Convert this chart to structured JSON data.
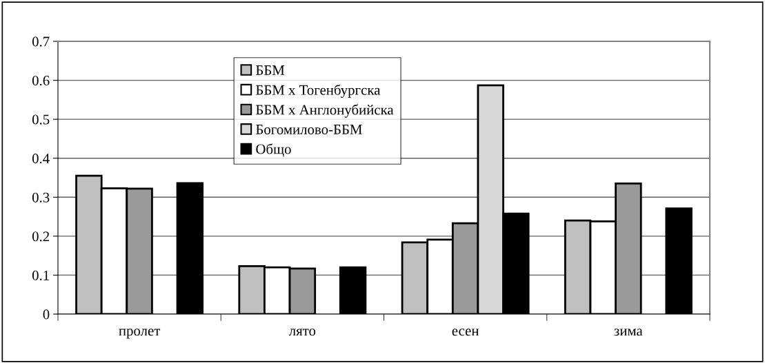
{
  "chart_data": {
    "type": "bar",
    "categories": [
      "пролет",
      "лято",
      "есен",
      "зима"
    ],
    "series": [
      {
        "name": "ББМ",
        "color": "#c0c0c0",
        "values": [
          0.355,
          0.123,
          0.184,
          0.24
        ]
      },
      {
        "name": "ББМ х Тогенбургска",
        "color": "#ffffff",
        "values": [
          0.323,
          0.12,
          0.191,
          0.238
        ]
      },
      {
        "name": "ББМ х Англонубийска",
        "color": "#9a9a9a",
        "values": [
          0.322,
          0.117,
          0.233,
          0.335
        ]
      },
      {
        "name": "Богомилово-ББМ",
        "color": "#d8d8d8",
        "values": [
          null,
          null,
          0.587,
          null
        ]
      },
      {
        "name": "Общо",
        "color": "#000000",
        "values": [
          0.336,
          0.12,
          0.258,
          0.271
        ]
      }
    ],
    "ylim": [
      0,
      0.7
    ],
    "yticks": [
      0,
      0.1,
      0.2,
      0.3,
      0.4,
      0.5,
      0.6,
      0.7
    ],
    "grid": "y",
    "legend": "top"
  }
}
